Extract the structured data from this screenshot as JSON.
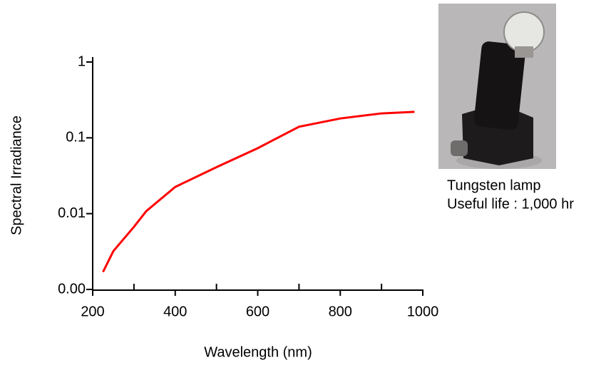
{
  "chart_data": {
    "type": "line",
    "x_label": "Wavelength (nm)",
    "y_label": "Spectral Irradiance",
    "x": [
      225,
      250,
      300,
      330,
      400,
      500,
      600,
      700,
      800,
      900,
      980
    ],
    "series": [
      {
        "name": "Tungsten lamp",
        "color": "#ff0000",
        "values": [
          0.0017,
          0.0032,
          0.0067,
          0.0108,
          0.0225,
          0.041,
          0.073,
          0.14,
          0.18,
          0.21,
          0.22
        ]
      }
    ],
    "xlim": [
      200,
      1000
    ],
    "xticks": [
      200,
      400,
      600,
      800,
      1000
    ],
    "ylim": [
      0.001,
      1
    ],
    "yticks": [
      1,
      0.1,
      0.01,
      {
        "value": 0.001,
        "label": "0.00"
      }
    ],
    "y_log": true,
    "annotations": [
      "Tungsten lamp",
      "Useful life : 1,000 hr"
    ]
  }
}
